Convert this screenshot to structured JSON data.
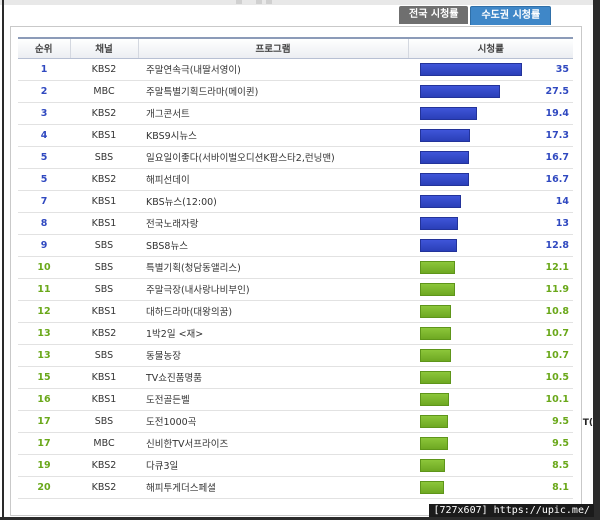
{
  "tabs": [
    {
      "label": "전국 시청률",
      "active": false
    },
    {
      "label": "수도권 시청률",
      "active": true
    }
  ],
  "table": {
    "headers": [
      "순위",
      "채널",
      "프로그램",
      "시청률"
    ],
    "max_rating": 35,
    "rows": [
      {
        "rank": "1",
        "channel": "KBS2",
        "program": "주말연속극(내딸서영이)",
        "rating": 35,
        "rating_label": "35",
        "color": "blue"
      },
      {
        "rank": "2",
        "channel": "MBC",
        "program": "주말특별기획드라마(메이퀸)",
        "rating": 27.5,
        "rating_label": "27.5",
        "color": "blue"
      },
      {
        "rank": "3",
        "channel": "KBS2",
        "program": "개그콘서트",
        "rating": 19.4,
        "rating_label": "19.4",
        "color": "blue"
      },
      {
        "rank": "4",
        "channel": "KBS1",
        "program": "KBS9시뉴스",
        "rating": 17.3,
        "rating_label": "17.3",
        "color": "blue"
      },
      {
        "rank": "5",
        "channel": "SBS",
        "program": "일요일이좋다(서바이벌오디션K팝스타2,런닝맨)",
        "rating": 16.7,
        "rating_label": "16.7",
        "color": "blue"
      },
      {
        "rank": "5",
        "channel": "KBS2",
        "program": "해피선데이",
        "rating": 16.7,
        "rating_label": "16.7",
        "color": "blue"
      },
      {
        "rank": "7",
        "channel": "KBS1",
        "program": "KBS뉴스(12:00)",
        "rating": 14,
        "rating_label": "14",
        "color": "blue"
      },
      {
        "rank": "8",
        "channel": "KBS1",
        "program": "전국노래자랑",
        "rating": 13,
        "rating_label": "13",
        "color": "blue"
      },
      {
        "rank": "9",
        "channel": "SBS",
        "program": "SBS8뉴스",
        "rating": 12.8,
        "rating_label": "12.8",
        "color": "blue"
      },
      {
        "rank": "10",
        "channel": "SBS",
        "program": "특별기획(청담동앨리스)",
        "rating": 12.1,
        "rating_label": "12.1",
        "color": "green"
      },
      {
        "rank": "11",
        "channel": "SBS",
        "program": "주말극장(내사랑나비부인)",
        "rating": 11.9,
        "rating_label": "11.9",
        "color": "green"
      },
      {
        "rank": "12",
        "channel": "KBS1",
        "program": "대하드라마(대왕의꿈)",
        "rating": 10.8,
        "rating_label": "10.8",
        "color": "green"
      },
      {
        "rank": "13",
        "channel": "KBS2",
        "program": "1박2일 <재>",
        "rating": 10.7,
        "rating_label": "10.7",
        "color": "green"
      },
      {
        "rank": "13",
        "channel": "SBS",
        "program": "동물농장",
        "rating": 10.7,
        "rating_label": "10.7",
        "color": "green"
      },
      {
        "rank": "15",
        "channel": "KBS1",
        "program": "TV쇼진품명품",
        "rating": 10.5,
        "rating_label": "10.5",
        "color": "green"
      },
      {
        "rank": "16",
        "channel": "KBS1",
        "program": "도전골든벨",
        "rating": 10.1,
        "rating_label": "10.1",
        "color": "green"
      },
      {
        "rank": "17",
        "channel": "SBS",
        "program": "도전1000곡",
        "rating": 9.5,
        "rating_label": "9.5",
        "color": "green"
      },
      {
        "rank": "17",
        "channel": "MBC",
        "program": "신비한TV서프라이즈",
        "rating": 9.5,
        "rating_label": "9.5",
        "color": "green"
      },
      {
        "rank": "19",
        "channel": "KBS2",
        "program": "다큐3일",
        "rating": 8.5,
        "rating_label": "8.5",
        "color": "green"
      },
      {
        "rank": "20",
        "channel": "KBS2",
        "program": "해피투게더스페셜",
        "rating": 8.1,
        "rating_label": "8.1",
        "color": "green"
      }
    ]
  },
  "colors": {
    "blue_bar": "#3447c8",
    "green_bar": "#7ab82a",
    "active_tab": "#3f87c8",
    "inactive_tab": "#6f6f6f"
  },
  "watermark": "[727x607] https://upic.me/",
  "side_edge_text": "T("
}
